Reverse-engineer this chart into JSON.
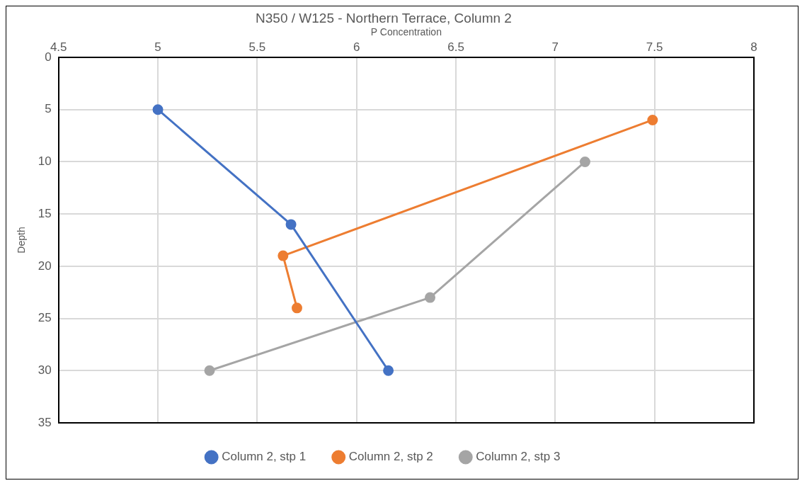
{
  "chart_data": {
    "type": "line",
    "title": "N350 / W125 - Northern Terrace, Column 2",
    "xlabel": "P Concentration",
    "ylabel": "Depth",
    "xlim": [
      4.5,
      8
    ],
    "xticks": [
      4.5,
      5,
      5.5,
      6,
      6.5,
      7,
      7.5,
      8
    ],
    "ylim": [
      35,
      0
    ],
    "yticks": [
      0,
      5,
      10,
      15,
      20,
      25,
      30,
      35
    ],
    "grid": true,
    "legend": "bottom",
    "marker": "circle",
    "line_style": "solid",
    "series": [
      {
        "name": "Column 2, stp 1",
        "color": "#4472c4",
        "x": [
          5.0,
          5.67,
          6.16
        ],
        "values": [
          5,
          16,
          30
        ]
      },
      {
        "name": "Column 2, stp 2",
        "color": "#ed7d31",
        "x": [
          7.49,
          5.63,
          5.7
        ],
        "values": [
          6,
          19,
          24
        ]
      },
      {
        "name": "Column 2, stp 3",
        "color": "#a5a5a5",
        "x": [
          7.15,
          6.37,
          5.26
        ],
        "values": [
          10,
          23,
          30
        ]
      }
    ]
  }
}
